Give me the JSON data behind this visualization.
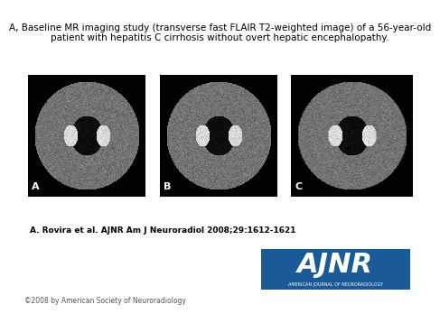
{
  "title_line1": "A, Baseline MR imaging study (transverse fast FLAIR T2-weighted image) of a 56-year-old",
  "title_line2": "patient with hepatitis C cirrhosis without overt hepatic encephalopathy.",
  "citation": "A. Rovira et al. AJNR Am J Neuroradiol 2008;29:1612-1621",
  "copyright": "©2008 by American Society of Neuroradiology",
  "labels": [
    "A",
    "B",
    "C"
  ],
  "bg_color": "#ffffff",
  "title_fontsize": 7.5,
  "citation_fontsize": 6.5,
  "copyright_fontsize": 5.5,
  "label_fontsize": 8,
  "ainr_bg_color": "#1a5a96",
  "ainr_text_color": "#ffffff",
  "ainr_text": "AJNR",
  "ainr_subtext": "AMERICAN JOURNAL OF NEURORADIOLOGY"
}
